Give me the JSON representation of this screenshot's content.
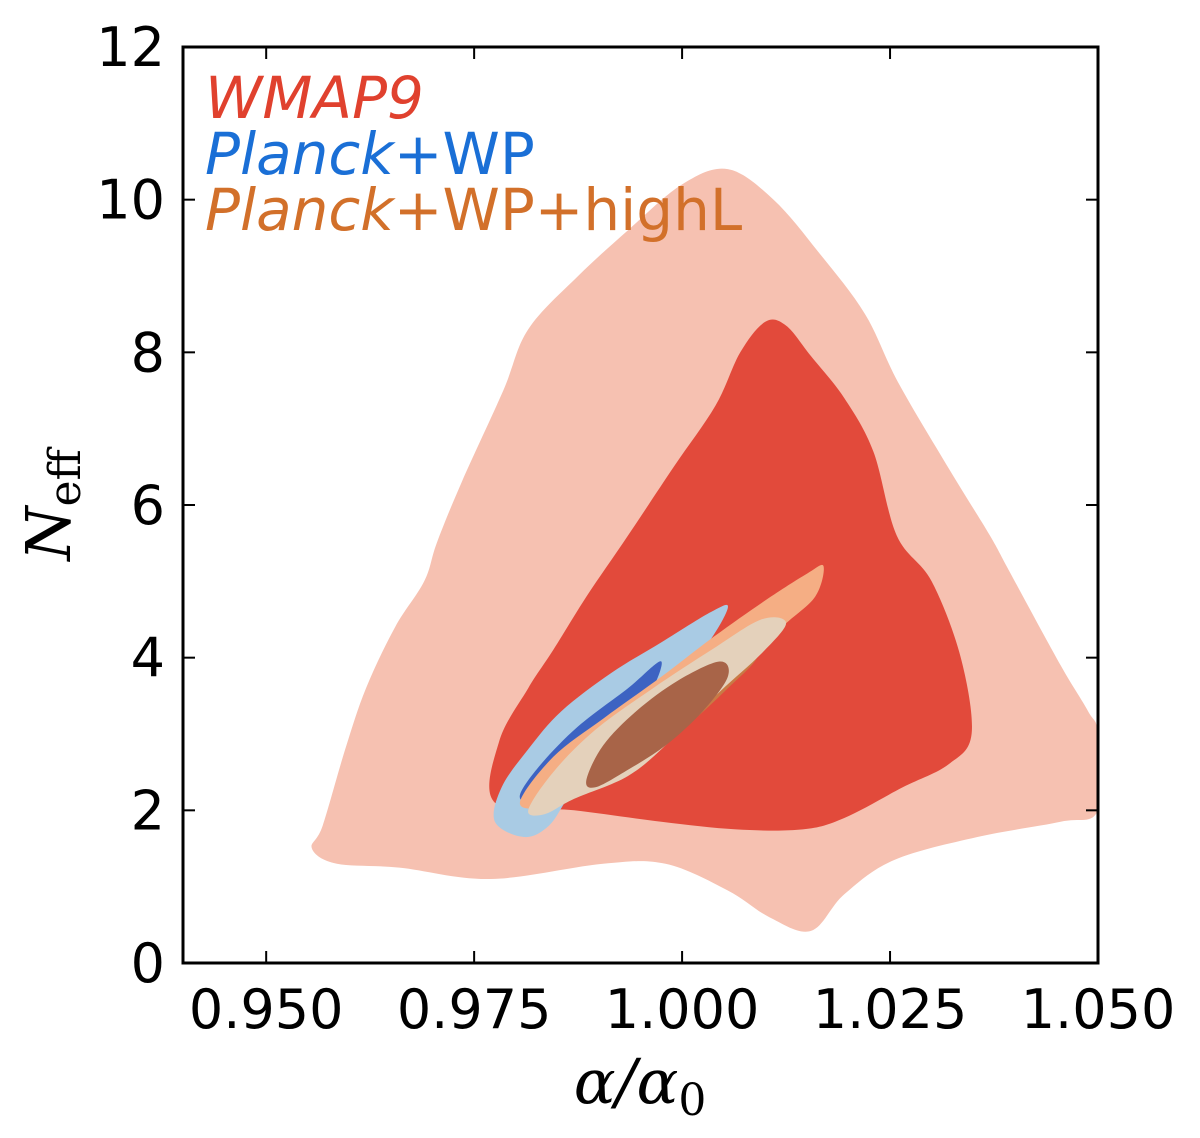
{
  "chart_data": {
    "type": "contour",
    "xlabel": {
      "main": "α/α",
      "sub": "0"
    },
    "ylabel": {
      "main": "N",
      "sub": "eff"
    },
    "xlim": [
      0.94,
      1.05
    ],
    "ylim": [
      0,
      12
    ],
    "xticks": [
      {
        "value": 0.95,
        "label": "0.950"
      },
      {
        "value": 0.975,
        "label": "0.975"
      },
      {
        "value": 1.0,
        "label": "1.000"
      },
      {
        "value": 1.025,
        "label": "1.025"
      },
      {
        "value": 1.05,
        "label": "1.050"
      }
    ],
    "yticks": [
      {
        "value": 0,
        "label": "0"
      },
      {
        "value": 2,
        "label": "2"
      },
      {
        "value": 4,
        "label": "4"
      },
      {
        "value": 6,
        "label": "6"
      },
      {
        "value": 8,
        "label": "8"
      },
      {
        "value": 10,
        "label": "10"
      },
      {
        "value": 12,
        "label": "12"
      }
    ],
    "legend": {
      "placement": "top-left",
      "entries": [
        {
          "name": "WMAP9",
          "parts": [
            {
              "text": "WMAP9",
              "italic": true
            }
          ],
          "color": "#e0412e"
        },
        {
          "name": "Planck+WP",
          "parts": [
            {
              "text": "Planck",
              "italic": true
            },
            {
              "text": "+WP",
              "italic": false
            }
          ],
          "color": "#1a6fd6"
        },
        {
          "name": "Planck+WP+highL",
          "parts": [
            {
              "text": "Planck",
              "italic": true
            },
            {
              "text": "+WP+highL",
              "italic": false
            }
          ],
          "color": "#d2702a"
        }
      ]
    },
    "series": [
      {
        "name": "WMAP9",
        "level": "95%",
        "color": "#f6c1b1",
        "points": [
          [
            0.9555,
            1.5
          ],
          [
            0.9568,
            1.8
          ],
          [
            0.9595,
            2.8
          ],
          [
            0.962,
            3.6
          ],
          [
            0.9655,
            4.4
          ],
          [
            0.969,
            5.0
          ],
          [
            0.9705,
            5.5
          ],
          [
            0.9735,
            6.3
          ],
          [
            0.9785,
            7.5
          ],
          [
            0.9815,
            8.3
          ],
          [
            0.9875,
            9.0
          ],
          [
            0.9935,
            9.6
          ],
          [
            1.0,
            10.2
          ],
          [
            1.0055,
            10.4
          ],
          [
            1.011,
            10.0
          ],
          [
            1.0165,
            9.3
          ],
          [
            1.022,
            8.5
          ],
          [
            1.026,
            7.6
          ],
          [
            1.0325,
            6.4
          ],
          [
            1.037,
            5.6
          ],
          [
            1.0395,
            5.1
          ],
          [
            1.0455,
            3.9
          ],
          [
            1.0488,
            3.3
          ],
          [
            1.05,
            3.0
          ],
          [
            1.05,
            2.0
          ],
          [
            1.0455,
            1.85
          ],
          [
            1.0355,
            1.65
          ],
          [
            1.0255,
            1.35
          ],
          [
            1.0195,
            0.9
          ],
          [
            1.0155,
            0.42
          ],
          [
            1.0105,
            0.6
          ],
          [
            1.0055,
            0.95
          ],
          [
            0.998,
            1.3
          ],
          [
            0.9905,
            1.3
          ],
          [
            0.977,
            1.1
          ],
          [
            0.966,
            1.25
          ],
          [
            0.9585,
            1.3
          ]
        ]
      },
      {
        "name": "WMAP9",
        "level": "68%",
        "color": "#e24a3b",
        "points": [
          [
            0.9775,
            2.1
          ],
          [
            0.978,
            2.9
          ],
          [
            0.9815,
            3.6
          ],
          [
            0.9845,
            4.1
          ],
          [
            0.9885,
            4.8
          ],
          [
            0.9935,
            5.6
          ],
          [
            0.999,
            6.5
          ],
          [
            1.004,
            7.3
          ],
          [
            1.007,
            8.0
          ],
          [
            1.01,
            8.4
          ],
          [
            1.0125,
            8.35
          ],
          [
            1.0155,
            7.95
          ],
          [
            1.0195,
            7.4
          ],
          [
            1.023,
            6.7
          ],
          [
            1.0258,
            5.6
          ],
          [
            1.03,
            5.0
          ],
          [
            1.0335,
            4.0
          ],
          [
            1.0348,
            3.0
          ],
          [
            1.032,
            2.6
          ],
          [
            1.0265,
            2.3
          ],
          [
            1.0195,
            1.9
          ],
          [
            1.0145,
            1.75
          ],
          [
            1.0065,
            1.75
          ],
          [
            0.9975,
            1.85
          ],
          [
            0.987,
            2.0
          ]
        ]
      },
      {
        "name": "Planck+WP",
        "level": "95%",
        "color": "#a9cbe4",
        "points": [
          [
            0.9775,
            1.85
          ],
          [
            0.9783,
            2.3
          ],
          [
            0.9815,
            2.8
          ],
          [
            0.9855,
            3.3
          ],
          [
            0.9915,
            3.8
          ],
          [
            0.9975,
            4.2
          ],
          [
            1.0035,
            4.6
          ],
          [
            1.0055,
            4.65
          ],
          [
            1.0025,
            4.1
          ],
          [
            0.9965,
            3.4
          ],
          [
            0.9905,
            2.75
          ],
          [
            0.9865,
            2.2
          ],
          [
            0.984,
            1.8
          ],
          [
            0.981,
            1.65
          ]
        ]
      },
      {
        "name": "Planck+WP",
        "level": "68%",
        "color": "#3d63c2",
        "points": [
          [
            0.9805,
            2.2
          ],
          [
            0.983,
            2.6
          ],
          [
            0.9875,
            3.1
          ],
          [
            0.9935,
            3.6
          ],
          [
            0.9975,
            3.95
          ],
          [
            0.9955,
            3.4
          ],
          [
            0.9905,
            2.75
          ],
          [
            0.9855,
            2.3
          ],
          [
            0.982,
            2.1
          ]
        ]
      },
      {
        "name": "Planck+WP+highL",
        "level": "95%",
        "color": "#f5ae84",
        "points": [
          [
            0.9805,
            2.1
          ],
          [
            0.9845,
            2.7
          ],
          [
            0.9905,
            3.2
          ],
          [
            0.9975,
            3.75
          ],
          [
            1.0035,
            4.25
          ],
          [
            1.01,
            4.75
          ],
          [
            1.015,
            5.1
          ],
          [
            1.017,
            5.2
          ],
          [
            1.016,
            4.8
          ],
          [
            1.012,
            4.4
          ],
          [
            1.0065,
            3.8
          ],
          [
            1.0,
            3.1
          ],
          [
            0.9945,
            2.6
          ],
          [
            0.989,
            2.3
          ],
          [
            0.984,
            2.05
          ]
        ]
      },
      {
        "name": "Planck+WP+highL",
        "level": "68%",
        "color": "#c97a45",
        "points": [
          [
            0.9875,
            2.6
          ],
          [
            0.9915,
            3.05
          ],
          [
            0.9975,
            3.5
          ],
          [
            1.003,
            3.9
          ],
          [
            1.008,
            4.2
          ],
          [
            1.009,
            4.0
          ],
          [
            1.0055,
            3.6
          ],
          [
            1.0005,
            3.1
          ],
          [
            0.9955,
            2.7
          ],
          [
            0.991,
            2.5
          ]
        ]
      },
      {
        "name": "Planck+WP+highL",
        "level": "overlap-95",
        "color": "#e4d1bb",
        "points": [
          [
            0.9815,
            2.0
          ],
          [
            0.9845,
            2.5
          ],
          [
            0.9895,
            3.05
          ],
          [
            0.9965,
            3.6
          ],
          [
            1.0035,
            4.1
          ],
          [
            1.0095,
            4.5
          ],
          [
            1.0125,
            4.45
          ],
          [
            1.0095,
            4.05
          ],
          [
            1.0045,
            3.55
          ],
          [
            0.9985,
            2.9
          ],
          [
            0.9935,
            2.45
          ],
          [
            0.987,
            2.15
          ],
          [
            0.9835,
            1.95
          ]
        ]
      },
      {
        "name": "Planck+WP+highL",
        "level": "overlap-68",
        "color": "#a86448",
        "points": [
          [
            0.9885,
            2.4
          ],
          [
            0.9905,
            2.85
          ],
          [
            0.9945,
            3.3
          ],
          [
            0.9995,
            3.7
          ],
          [
            1.0045,
            3.95
          ],
          [
            1.0055,
            3.75
          ],
          [
            1.0025,
            3.3
          ],
          [
            0.998,
            2.85
          ],
          [
            0.993,
            2.5
          ],
          [
            0.9895,
            2.3
          ]
        ]
      }
    ]
  }
}
